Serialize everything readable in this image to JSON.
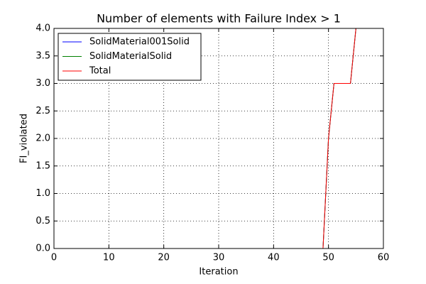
{
  "chart_data": {
    "type": "line",
    "title": "Number of elements with Failure Index > 1",
    "x_label": "Iteration",
    "y_label": "FI_violated",
    "x": [
      0,
      1,
      2,
      3,
      4,
      5,
      6,
      7,
      8,
      9,
      10,
      11,
      12,
      13,
      14,
      15,
      16,
      17,
      18,
      19,
      20,
      21,
      22,
      23,
      24,
      25,
      26,
      27,
      28,
      29,
      30,
      31,
      32,
      33,
      34,
      35,
      36,
      37,
      38,
      39,
      40,
      41,
      42,
      43,
      44,
      45,
      46,
      47,
      48,
      49,
      50,
      51,
      52,
      53,
      54,
      55
    ],
    "series": [
      {
        "name": "SolidMaterial001Solid",
        "color": "#0000ff",
        "values": [
          0,
          0,
          0,
          0,
          0,
          0,
          0,
          0,
          0,
          0,
          0,
          0,
          0,
          0,
          0,
          0,
          0,
          0,
          0,
          0,
          0,
          0,
          0,
          0,
          0,
          0,
          0,
          0,
          0,
          0,
          0,
          0,
          0,
          0,
          0,
          0,
          0,
          0,
          0,
          0,
          0,
          0,
          0,
          0,
          0,
          0,
          0,
          0,
          0,
          0,
          2,
          3,
          3,
          3,
          3,
          4
        ]
      },
      {
        "name": "SolidMaterialSolid",
        "color": "#008000",
        "values": [
          0,
          0,
          0,
          0,
          0,
          0,
          0,
          0,
          0,
          0,
          0,
          0,
          0,
          0,
          0,
          0,
          0,
          0,
          0,
          0,
          0,
          0,
          0,
          0,
          0,
          0,
          0,
          0,
          0,
          0,
          0,
          0,
          0,
          0,
          0,
          0,
          0,
          0,
          0,
          0,
          0,
          0,
          0,
          0,
          0,
          0,
          0,
          0,
          0,
          0,
          2,
          3,
          3,
          3,
          3,
          4
        ]
      },
      {
        "name": "Total",
        "color": "#ff0000",
        "values": [
          0,
          0,
          0,
          0,
          0,
          0,
          0,
          0,
          0,
          0,
          0,
          0,
          0,
          0,
          0,
          0,
          0,
          0,
          0,
          0,
          0,
          0,
          0,
          0,
          0,
          0,
          0,
          0,
          0,
          0,
          0,
          0,
          0,
          0,
          0,
          0,
          0,
          0,
          0,
          0,
          0,
          0,
          0,
          0,
          0,
          0,
          0,
          0,
          0,
          0,
          2,
          3,
          3,
          3,
          3,
          4
        ]
      }
    ],
    "xlim": [
      0,
      60
    ],
    "xticks": [
      0,
      10,
      20,
      30,
      40,
      50,
      60
    ],
    "ylim": [
      0,
      4
    ],
    "yticks": [
      {
        "value": 0,
        "label": "0.0"
      },
      {
        "value": 0.5,
        "label": "0.5"
      },
      {
        "value": 1,
        "label": "1.0"
      },
      {
        "value": 1.5,
        "label": "1.5"
      },
      {
        "value": 2,
        "label": "2.0"
      },
      {
        "value": 2.5,
        "label": "2.5"
      },
      {
        "value": 3,
        "label": "3.0"
      },
      {
        "value": 3.5,
        "label": "3.5"
      },
      {
        "value": 4,
        "label": "4.0"
      }
    ],
    "grid": true,
    "legend": "upper-left"
  }
}
